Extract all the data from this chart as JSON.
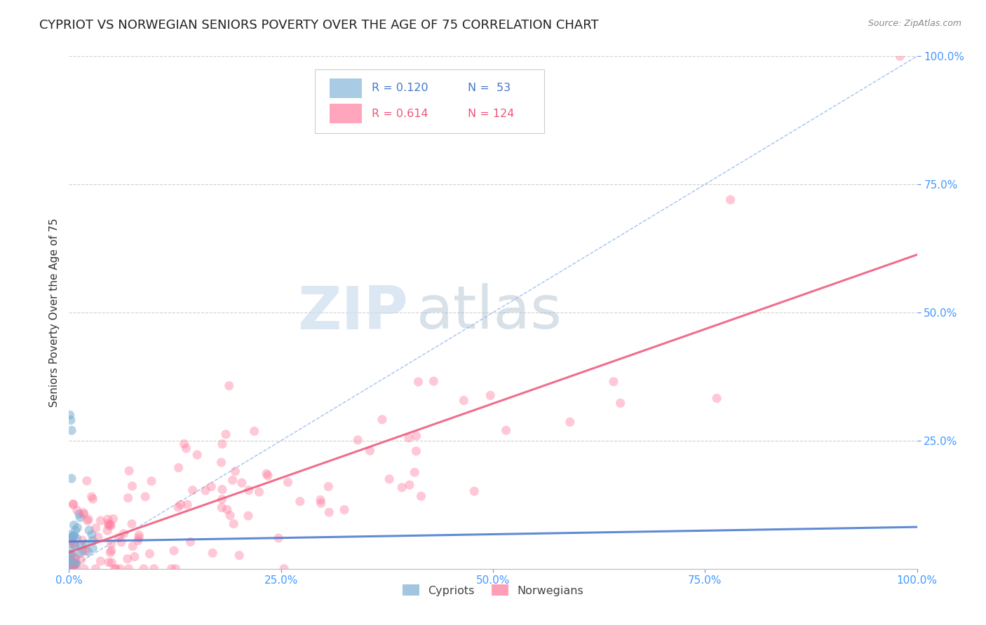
{
  "title": "CYPRIOT VS NORWEGIAN SENIORS POVERTY OVER THE AGE OF 75 CORRELATION CHART",
  "source": "Source: ZipAtlas.com",
  "ylabel": "Seniors Poverty Over the Age of 75",
  "xlim": [
    0,
    1
  ],
  "ylim": [
    0,
    1
  ],
  "xticks": [
    0,
    0.25,
    0.5,
    0.75,
    1.0
  ],
  "yticks": [
    0.25,
    0.5,
    0.75,
    1.0
  ],
  "xticklabels": [
    "0.0%",
    "25.0%",
    "50.0%",
    "75.0%",
    "100.0%"
  ],
  "yticklabels": [
    "25.0%",
    "50.0%",
    "75.0%",
    "100.0%"
  ],
  "legend_r1": "R = 0.120",
  "legend_n1": "N =  53",
  "legend_r2": "R = 0.614",
  "legend_n2": "N = 124",
  "cypriot_color": "#7BAFD4",
  "norwegian_color": "#FF7799",
  "cypriot_line_color": "#4477CC",
  "norwegian_line_color": "#EE5577",
  "diag_line_color": "#99BBEE",
  "background_color": "#FFFFFF",
  "title_fontsize": 13,
  "label_fontsize": 11,
  "tick_fontsize": 11,
  "tick_color_blue": "#4499FF",
  "source_color": "#888888"
}
